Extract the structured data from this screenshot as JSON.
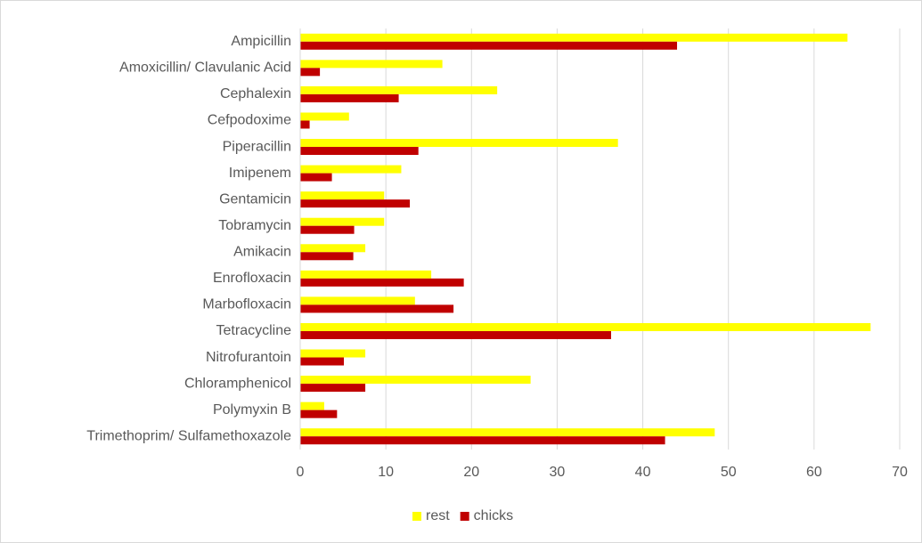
{
  "chart_data": {
    "type": "bar",
    "orientation": "horizontal",
    "categories": [
      "Ampicillin",
      "Amoxicillin/ Clavulanic Acid",
      "Cephalexin",
      "Cefpodoxime",
      "Piperacillin",
      "Imipenem",
      "Gentamicin",
      "Tobramycin",
      "Amikacin",
      "Enrofloxacin",
      "Marbofloxacin",
      "Tetracycline",
      "Nitrofurantoin",
      "Chloramphenicol",
      "Polymyxin B",
      "Trimethoprim/ Sulfamethoxazole"
    ],
    "series": [
      {
        "name": "rest",
        "color": "#ffff00",
        "values": [
          63.9,
          16.6,
          23.0,
          5.7,
          37.1,
          11.8,
          9.8,
          9.8,
          7.6,
          15.3,
          13.4,
          66.6,
          7.6,
          26.9,
          2.8,
          48.4
        ]
      },
      {
        "name": "chicks",
        "color": "#c00000",
        "values": [
          44.0,
          2.3,
          11.5,
          1.1,
          13.8,
          3.7,
          12.8,
          6.3,
          6.2,
          19.1,
          17.9,
          36.3,
          5.1,
          7.6,
          4.3,
          42.6
        ]
      }
    ],
    "xlim": [
      0,
      70
    ],
    "xticks": [
      0,
      10,
      20,
      30,
      40,
      50,
      60,
      70
    ],
    "grid": true,
    "legend": "bottom"
  }
}
